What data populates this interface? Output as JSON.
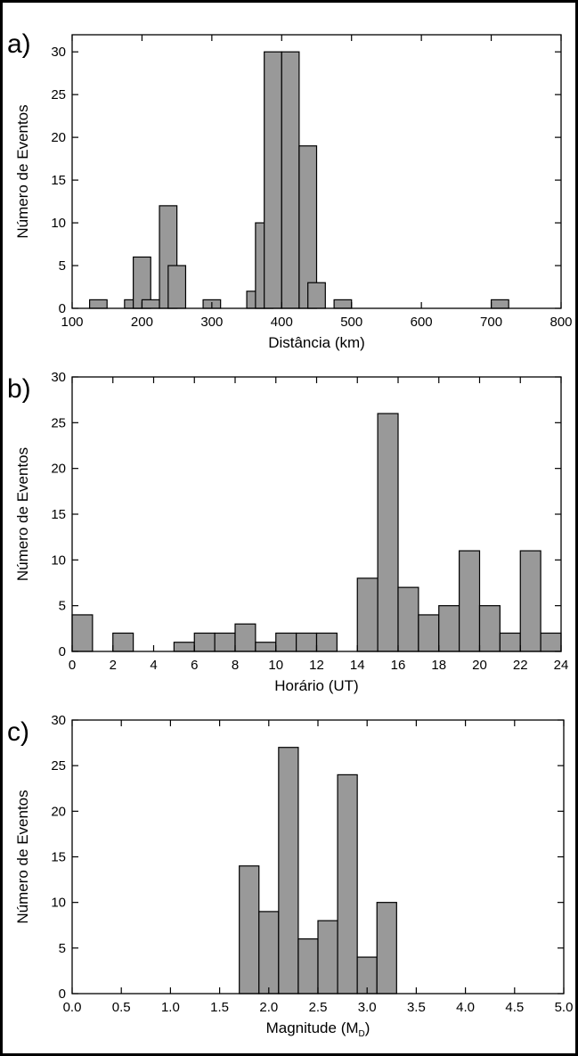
{
  "figure": {
    "bar_fill": "#999999",
    "bar_stroke": "#000000",
    "frame_color": "#000000"
  },
  "chart_data": [
    {
      "type": "bar",
      "panel_label": "a)",
      "xlabel": "Distância (km)",
      "ylabel": "Número de Eventos",
      "xlim": [
        100,
        800
      ],
      "ylim": [
        0,
        32
      ],
      "x_ticks": [
        100,
        200,
        300,
        400,
        500,
        600,
        700,
        800
      ],
      "x_tick_labels": [
        "100",
        "200",
        "300",
        "400",
        "500",
        "600",
        "700",
        "800"
      ],
      "y_ticks": [
        0,
        5,
        10,
        15,
        20,
        25,
        30
      ],
      "y_tick_labels": [
        "0",
        "5",
        "10",
        "15",
        "20",
        "25",
        "30"
      ],
      "bin_width": 25,
      "bins": [
        {
          "x": 125,
          "value": 1
        },
        {
          "x": 175,
          "value": 1
        },
        {
          "x": 187.5,
          "value": 6
        },
        {
          "x": 200,
          "value": 1
        },
        {
          "x": 225,
          "value": 12
        },
        {
          "x": 237.5,
          "value": 5
        },
        {
          "x": 287.5,
          "value": 1
        },
        {
          "x": 350,
          "value": 2
        },
        {
          "x": 362.5,
          "value": 10
        },
        {
          "x": 375,
          "value": 30
        },
        {
          "x": 400,
          "value": 30
        },
        {
          "x": 425,
          "value": 19
        },
        {
          "x": 437.5,
          "value": 3
        },
        {
          "x": 475,
          "value": 1
        },
        {
          "x": 700,
          "value": 1
        }
      ]
    },
    {
      "type": "bar",
      "panel_label": "b)",
      "xlabel": "Horário (UT)",
      "ylabel": "Número de Eventos",
      "xlim": [
        0,
        24
      ],
      "ylim": [
        0,
        30
      ],
      "x_ticks": [
        0,
        2,
        4,
        6,
        8,
        10,
        12,
        14,
        16,
        18,
        20,
        22,
        24
      ],
      "x_tick_labels": [
        "0",
        "2",
        "4",
        "6",
        "8",
        "10",
        "12",
        "14",
        "16",
        "18",
        "20",
        "22",
        "24"
      ],
      "y_ticks": [
        0,
        5,
        10,
        15,
        20,
        25,
        30
      ],
      "y_tick_labels": [
        "0",
        "5",
        "10",
        "15",
        "20",
        "25",
        "30"
      ],
      "bin_width": 1,
      "bins": [
        {
          "x": 0,
          "value": 4
        },
        {
          "x": 1,
          "value": 0
        },
        {
          "x": 2,
          "value": 2
        },
        {
          "x": 3,
          "value": 0
        },
        {
          "x": 4,
          "value": 0
        },
        {
          "x": 5,
          "value": 1
        },
        {
          "x": 6,
          "value": 2
        },
        {
          "x": 7,
          "value": 2
        },
        {
          "x": 8,
          "value": 3
        },
        {
          "x": 9,
          "value": 1
        },
        {
          "x": 10,
          "value": 2
        },
        {
          "x": 11,
          "value": 2
        },
        {
          "x": 12,
          "value": 2
        },
        {
          "x": 13,
          "value": 0
        },
        {
          "x": 14,
          "value": 8
        },
        {
          "x": 15,
          "value": 26
        },
        {
          "x": 16,
          "value": 7
        },
        {
          "x": 17,
          "value": 4
        },
        {
          "x": 18,
          "value": 5
        },
        {
          "x": 19,
          "value": 11
        },
        {
          "x": 20,
          "value": 5
        },
        {
          "x": 21,
          "value": 2
        },
        {
          "x": 22,
          "value": 11
        },
        {
          "x": 23,
          "value": 2
        }
      ]
    },
    {
      "type": "bar",
      "panel_label": "c)",
      "xlabel": "Magnitude (M",
      "xlabel_sub": "D",
      "xlabel_end": ")",
      "ylabel": "Número de Eventos",
      "xlim": [
        0,
        5
      ],
      "ylim": [
        0,
        30
      ],
      "x_ticks": [
        0,
        0.5,
        1,
        1.5,
        2,
        2.5,
        3,
        3.5,
        4,
        4.5,
        5
      ],
      "x_tick_labels": [
        "0.0",
        "0.5",
        "1.0",
        "1.5",
        "2.0",
        "2.5",
        "3.0",
        "3.5",
        "4.0",
        "4.5",
        "5.0"
      ],
      "y_ticks": [
        0,
        5,
        10,
        15,
        20,
        25,
        30
      ],
      "y_tick_labels": [
        "0",
        "5",
        "10",
        "15",
        "20",
        "25",
        "30"
      ],
      "bin_width": 0.2,
      "bins": [
        {
          "x": 1.7,
          "value": 14
        },
        {
          "x": 1.9,
          "value": 9
        },
        {
          "x": 2.1,
          "value": 27
        },
        {
          "x": 2.3,
          "value": 6
        },
        {
          "x": 2.5,
          "value": 8
        },
        {
          "x": 2.7,
          "value": 24
        },
        {
          "x": 2.9,
          "value": 4
        },
        {
          "x": 3.1,
          "value": 10
        }
      ]
    }
  ]
}
